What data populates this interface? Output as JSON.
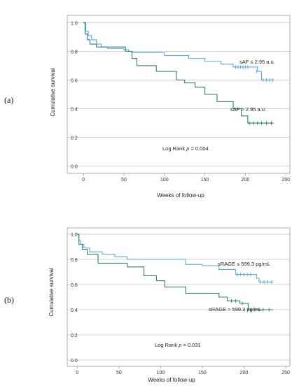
{
  "chart_data": [
    {
      "type": "line",
      "step": true,
      "panel_label": "(a)",
      "xlabel": "Weeks of follow-up",
      "ylabel": "Cumulative survival",
      "xlim": [
        -20,
        255
      ],
      "ylim": [
        -0.05,
        1.05
      ],
      "x_ticks": [
        "0",
        "50",
        "100",
        "150",
        "200",
        "250"
      ],
      "y_ticks": [
        "0.0",
        "0.2",
        "0.4",
        "0.6",
        "0.8",
        "1.0"
      ],
      "annotation": {
        "prefix": "Log Rank ",
        "p": "p",
        "value": " = 0.004"
      },
      "colors": {
        "low": "#5aa9e6",
        "high": "#2e7f7a"
      },
      "series": [
        {
          "name": "sAF ≤ 2.95 a.u.",
          "color_key": "low",
          "points": [
            [
              0,
              1.0
            ],
            [
              3,
              0.94
            ],
            [
              6,
              0.91
            ],
            [
              10,
              0.88
            ],
            [
              16,
              0.85
            ],
            [
              22,
              0.83
            ],
            [
              30,
              0.82
            ],
            [
              50,
              0.81
            ],
            [
              56,
              0.8
            ],
            [
              60,
              0.79
            ],
            [
              100,
              0.77
            ],
            [
              130,
              0.75
            ],
            [
              150,
              0.73
            ],
            [
              170,
              0.71
            ],
            [
              185,
              0.69
            ],
            [
              210,
              0.69
            ],
            [
              215,
              0.66
            ],
            [
              220,
              0.6
            ],
            [
              235,
              0.6
            ]
          ],
          "censored": [
            [
              188,
              0.69
            ],
            [
              191,
              0.69
            ],
            [
              194,
              0.69
            ],
            [
              197,
              0.69
            ],
            [
              200,
              0.69
            ],
            [
              203,
              0.69
            ],
            [
              214,
              0.66
            ],
            [
              222,
              0.6
            ],
            [
              226,
              0.6
            ],
            [
              230,
              0.6
            ],
            [
              234,
              0.6
            ]
          ]
        },
        {
          "name": "sAF > 2.95 a.u.",
          "color_key": "high",
          "points": [
            [
              0,
              1.0
            ],
            [
              2,
              0.92
            ],
            [
              5,
              0.88
            ],
            [
              8,
              0.85
            ],
            [
              16,
              0.83
            ],
            [
              52,
              0.8
            ],
            [
              60,
              0.75
            ],
            [
              66,
              0.7
            ],
            [
              90,
              0.66
            ],
            [
              115,
              0.6
            ],
            [
              125,
              0.58
            ],
            [
              138,
              0.55
            ],
            [
              150,
              0.5
            ],
            [
              165,
              0.45
            ],
            [
              185,
              0.4
            ],
            [
              195,
              0.35
            ],
            [
              203,
              0.3
            ],
            [
              235,
              0.3
            ]
          ],
          "censored": [
            [
              205,
              0.3
            ],
            [
              210,
              0.3
            ],
            [
              215,
              0.3
            ],
            [
              220,
              0.3
            ],
            [
              226,
              0.3
            ],
            [
              232,
              0.3
            ]
          ]
        }
      ]
    },
    {
      "type": "line",
      "step": true,
      "panel_label": "(b)",
      "xlabel": "Weeks of follow-up",
      "ylabel": "Cumulative survival",
      "xlim": [
        -12,
        255
      ],
      "ylim": [
        -0.05,
        1.05
      ],
      "x_ticks": [
        "0",
        "50",
        "100",
        "150",
        "200",
        "250"
      ],
      "y_ticks": [
        "0.0",
        "0.2",
        "0.4",
        "0.6",
        "0.8",
        "1.0"
      ],
      "annotation": {
        "prefix": "Log Rank ",
        "p": "p",
        "value": " = 0.031"
      },
      "colors": {
        "low": "#5aa9e6",
        "high": "#2e7f7a"
      },
      "series": [
        {
          "name": "sRAGE ≤ 599.3 pg/mL",
          "color_key": "low",
          "points": [
            [
              0,
              1.0
            ],
            [
              2,
              0.95
            ],
            [
              4,
              0.92
            ],
            [
              8,
              0.89
            ],
            [
              15,
              0.86
            ],
            [
              30,
              0.84
            ],
            [
              45,
              0.82
            ],
            [
              60,
              0.8
            ],
            [
              130,
              0.76
            ],
            [
              150,
              0.75
            ],
            [
              170,
              0.72
            ],
            [
              190,
              0.68
            ],
            [
              215,
              0.65
            ],
            [
              218,
              0.62
            ],
            [
              235,
              0.62
            ]
          ],
          "censored": [
            [
              192,
              0.68
            ],
            [
              196,
              0.68
            ],
            [
              200,
              0.68
            ],
            [
              204,
              0.68
            ],
            [
              208,
              0.68
            ],
            [
              220,
              0.62
            ],
            [
              224,
              0.62
            ],
            [
              228,
              0.62
            ],
            [
              233,
              0.62
            ]
          ]
        },
        {
          "name": "sRAGE > 599.3 pg/mL",
          "color_key": "high",
          "points": [
            [
              0,
              1.0
            ],
            [
              2,
              0.92
            ],
            [
              6,
              0.88
            ],
            [
              12,
              0.84
            ],
            [
              25,
              0.77
            ],
            [
              60,
              0.74
            ],
            [
              80,
              0.67
            ],
            [
              95,
              0.63
            ],
            [
              105,
              0.58
            ],
            [
              130,
              0.53
            ],
            [
              170,
              0.5
            ],
            [
              180,
              0.47
            ],
            [
              195,
              0.45
            ],
            [
              205,
              0.4
            ],
            [
              235,
              0.4
            ]
          ],
          "censored": [
            [
              185,
              0.47
            ],
            [
              190,
              0.47
            ],
            [
              198,
              0.45
            ],
            [
              208,
              0.4
            ],
            [
              213,
              0.4
            ],
            [
              218,
              0.4
            ],
            [
              223,
              0.4
            ],
            [
              230,
              0.4
            ]
          ]
        }
      ]
    }
  ]
}
